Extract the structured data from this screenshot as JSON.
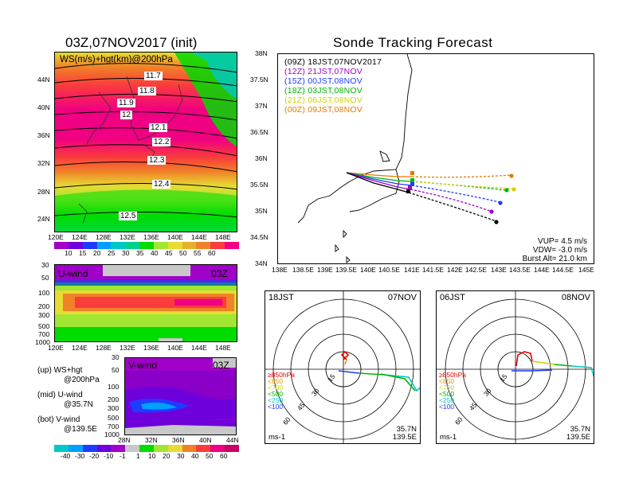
{
  "left_title": "03Z,07NOV2017 (init)",
  "right_title": "Sonde Tracking Forecast",
  "top_panel": {
    "label": "WS(m/s)+hgt(km)@200hPa",
    "lat_ticks": [
      "44N",
      "40N",
      "36N",
      "32N",
      "28N",
      "24N"
    ],
    "lon_ticks": [
      "120E",
      "124E",
      "128E",
      "132E",
      "136E",
      "140E",
      "144E",
      "148E"
    ],
    "contour_labels": [
      "11.7",
      "11.8",
      "11.9",
      "12",
      "12.1",
      "12.2",
      "12.3",
      "12.4",
      "12.5"
    ],
    "colorbar_ticks": [
      "10",
      "15",
      "20",
      "25",
      "30",
      "35",
      "40",
      "45",
      "50",
      "55",
      "60"
    ]
  },
  "mid_panel": {
    "label": "U-wind",
    "time": "03Z",
    "p_ticks": [
      "30",
      "50",
      "100",
      "200",
      "300",
      "500",
      "700",
      "1000"
    ],
    "lon_ticks": [
      "120E",
      "124E",
      "128E",
      "132E",
      "136E",
      "140E",
      "144E",
      "148E"
    ]
  },
  "bot_panel": {
    "label": "V-wind",
    "time": "03Z",
    "p_ticks": [
      "30",
      "50",
      "100",
      "200",
      "300",
      "500",
      "700",
      "1000"
    ],
    "lat_ticks": [
      "28N",
      "32N",
      "36N",
      "40N",
      "44N"
    ],
    "colorbar_ticks": [
      "-40",
      "-30",
      "-20",
      "-10",
      "-1",
      "1",
      "10",
      "20",
      "30",
      "40",
      "50",
      "60"
    ]
  },
  "notes": [
    {
      "tag": "(up)",
      "line1": "WS+hgt",
      "line2": "@200hPa"
    },
    {
      "tag": "(mid)",
      "line1": "U-wind",
      "line2": "@35.7N"
    },
    {
      "tag": "(bot)",
      "line1": "V-wind",
      "line2": "@139.5E"
    }
  ],
  "track_map": {
    "lat_ticks": [
      "38N",
      "37.5N",
      "37N",
      "36.5N",
      "36N",
      "35.5N",
      "35N",
      "34.5N",
      "34N"
    ],
    "lon_ticks": [
      "138E",
      "138.5E",
      "139E",
      "139.5E",
      "140E",
      "140.5E",
      "141E",
      "141.5E",
      "142E",
      "142.5E",
      "143E",
      "143.5E",
      "144E",
      "144.5E",
      "145E"
    ],
    "legend": [
      {
        "utc": "(09Z)",
        "jst": "18JST,07NOV2017",
        "color": "#000000"
      },
      {
        "utc": "(12Z)",
        "jst": "21JST,07NOV",
        "color": "#a000c8"
      },
      {
        "utc": "(15Z)",
        "jst": "00JST,08NOV",
        "color": "#1e3cff"
      },
      {
        "utc": "(18Z)",
        "jst": "03JST,08NOV",
        "color": "#00b400"
      },
      {
        "utc": "(21Z)",
        "jst": "06JST,08NOV",
        "color": "#d2d200"
      },
      {
        "utc": "(00Z)",
        "jst": "09JST,08NOV",
        "color": "#e67800"
      }
    ],
    "params": {
      "vup": "VUP= 4.5 m/s",
      "vdw": "VDW= -3.0 m/s",
      "burst": "Burst Alt= 21.0 km"
    }
  },
  "hodo_left": {
    "time": "18JST",
    "date": "07NOV",
    "lat": "35.7N",
    "lon": "139.5E",
    "unit": "ms-1",
    "rings": [
      "15",
      "30",
      "45",
      "60"
    ],
    "levels": [
      {
        "t": "≥850hPa",
        "c": "#e60000"
      },
      {
        "t": "<850",
        "c": "#e69600"
      },
      {
        "t": "<700",
        "c": "#d2d200"
      },
      {
        "t": "<500",
        "c": "#00b400"
      },
      {
        "t": "<250",
        "c": "#00c8c8"
      },
      {
        "t": "<100",
        "c": "#1e3cff"
      }
    ]
  },
  "hodo_right": {
    "time": "06JST",
    "date": "08NOV",
    "lat": "35.7N",
    "lon": "139.5E",
    "unit": "ms-1",
    "rings": [
      "15",
      "30",
      "45",
      "60"
    ],
    "levels": [
      {
        "t": "≥850hPa",
        "c": "#e60000"
      },
      {
        "t": "<850",
        "c": "#e69600"
      },
      {
        "t": "<700",
        "c": "#d2d200"
      },
      {
        "t": "<500",
        "c": "#00b400"
      },
      {
        "t": "<250",
        "c": "#00c8c8"
      },
      {
        "t": "<100",
        "c": "#1e3cff"
      }
    ]
  },
  "colors": {
    "ws_scale": [
      "#a000c8",
      "#6e00dc",
      "#1e3cff",
      "#00a0ff",
      "#00c8c8",
      "#00d28c",
      "#00dc00",
      "#a0e632",
      "#e6dc32",
      "#e6af2d",
      "#f08228",
      "#fa3c3c",
      "#f00082"
    ]
  }
}
